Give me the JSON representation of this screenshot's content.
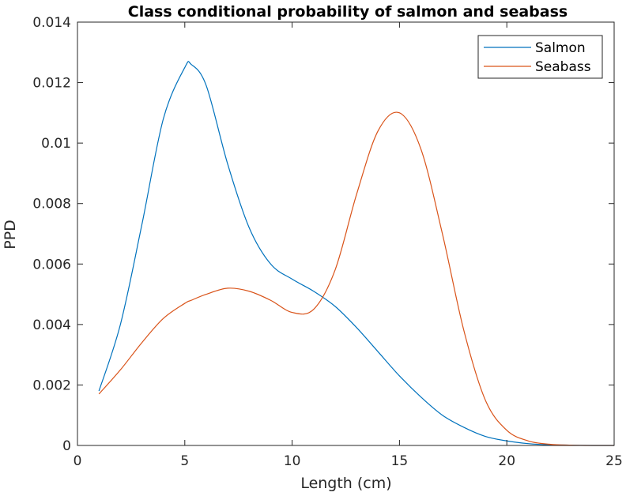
{
  "chart_data": {
    "type": "line",
    "title": "Class conditional probability of salmon and seabass",
    "xlabel": "Length (cm)",
    "ylabel": "PPD",
    "xlim": [
      0,
      25
    ],
    "ylim": [
      0,
      0.014
    ],
    "xticks": [
      0,
      5,
      10,
      15,
      20,
      25
    ],
    "xtick_labels": [
      "0",
      "5",
      "10",
      "15",
      "20",
      "25"
    ],
    "yticks": [
      0,
      0.002,
      0.004,
      0.006,
      0.008,
      0.01,
      0.012,
      0.014
    ],
    "ytick_labels": [
      "0",
      "0.002",
      "0.004",
      "0.006",
      "0.008",
      "0.01",
      "0.012",
      "0.014"
    ],
    "grid": false,
    "legend_position": "top-right",
    "x": [
      1,
      2,
      3,
      4,
      5,
      5.3,
      6,
      7,
      8,
      9,
      10,
      11,
      12,
      13,
      14,
      15,
      16,
      17,
      18,
      19,
      20,
      21,
      22,
      23,
      24,
      25
    ],
    "series": [
      {
        "name": "Salmon",
        "color": "#0072BD",
        "values": [
          0.0018,
          0.004,
          0.0073,
          0.0108,
          0.0125,
          0.0126,
          0.0119,
          0.0093,
          0.0072,
          0.006,
          0.0055,
          0.0051,
          0.0046,
          0.0039,
          0.0031,
          0.0023,
          0.0016,
          0.001,
          0.0006,
          0.0003,
          0.00015,
          6e-05,
          2e-05,
          1e-05,
          0.0,
          0.0
        ]
      },
      {
        "name": "Seabass",
        "color": "#D95319",
        "values": [
          0.0017,
          0.0025,
          0.0034,
          0.0042,
          0.0047,
          0.0048,
          0.005,
          0.0052,
          0.0051,
          0.0048,
          0.0044,
          0.0045,
          0.0058,
          0.0083,
          0.0104,
          0.011,
          0.0098,
          0.007,
          0.0038,
          0.0015,
          0.0005,
          0.00015,
          4e-05,
          1e-05,
          0.0,
          0.0
        ]
      }
    ]
  }
}
